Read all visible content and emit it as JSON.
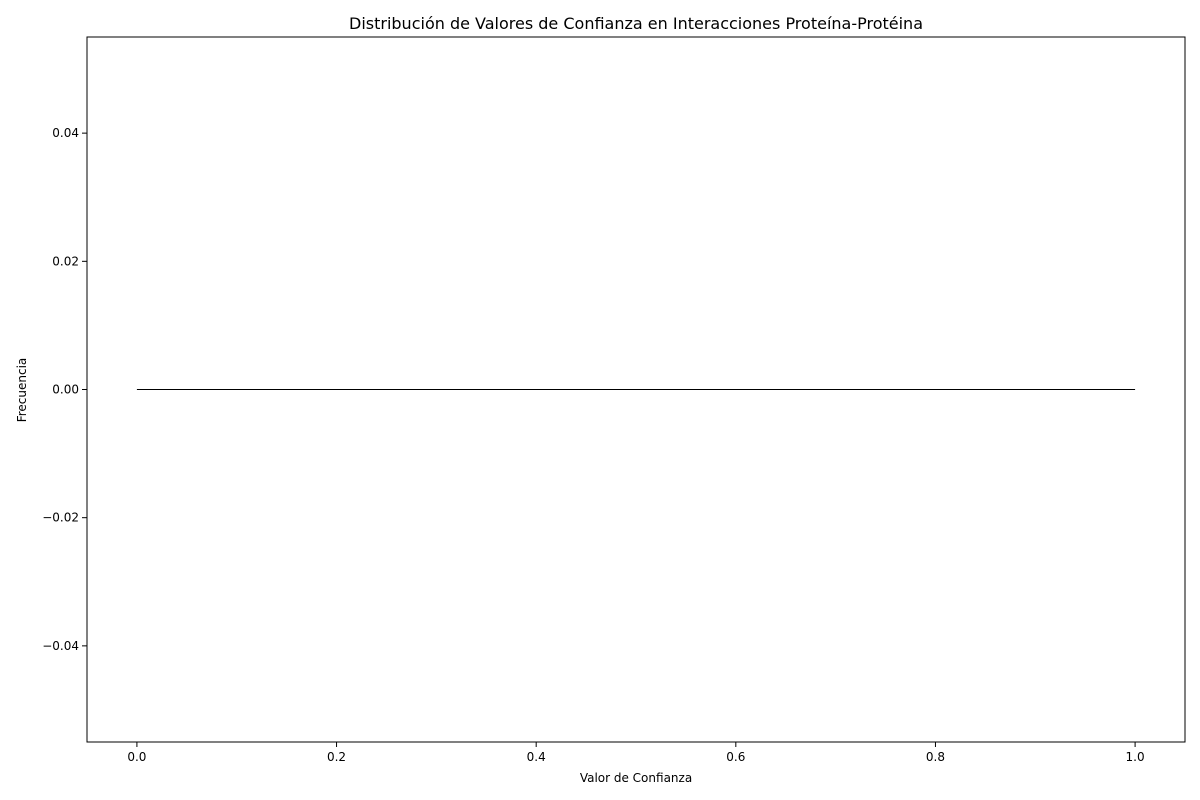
{
  "chart_data": {
    "type": "line",
    "title": "Distribución de Valores de Confianza en Interacciones Proteína-Protéina",
    "xlabel": "Valor de Confianza",
    "ylabel": "Frecuencia",
    "xlim": [
      -0.05,
      1.05
    ],
    "ylim": [
      -0.055,
      0.055
    ],
    "xticks": [
      0.0,
      0.2,
      0.4,
      0.6,
      0.8,
      1.0
    ],
    "xtick_labels": [
      "0.0",
      "0.2",
      "0.4",
      "0.6",
      "0.8",
      "1.0"
    ],
    "yticks": [
      -0.04,
      -0.02,
      0.0,
      0.02,
      0.04
    ],
    "ytick_labels": [
      "−0.04",
      "−0.02",
      "0.00",
      "0.02",
      "0.04"
    ],
    "grid": false,
    "series": [
      {
        "name": "Frecuencia",
        "x": [
          0.0,
          1.0
        ],
        "y": [
          0.0,
          0.0
        ],
        "color": "#000000"
      }
    ]
  }
}
